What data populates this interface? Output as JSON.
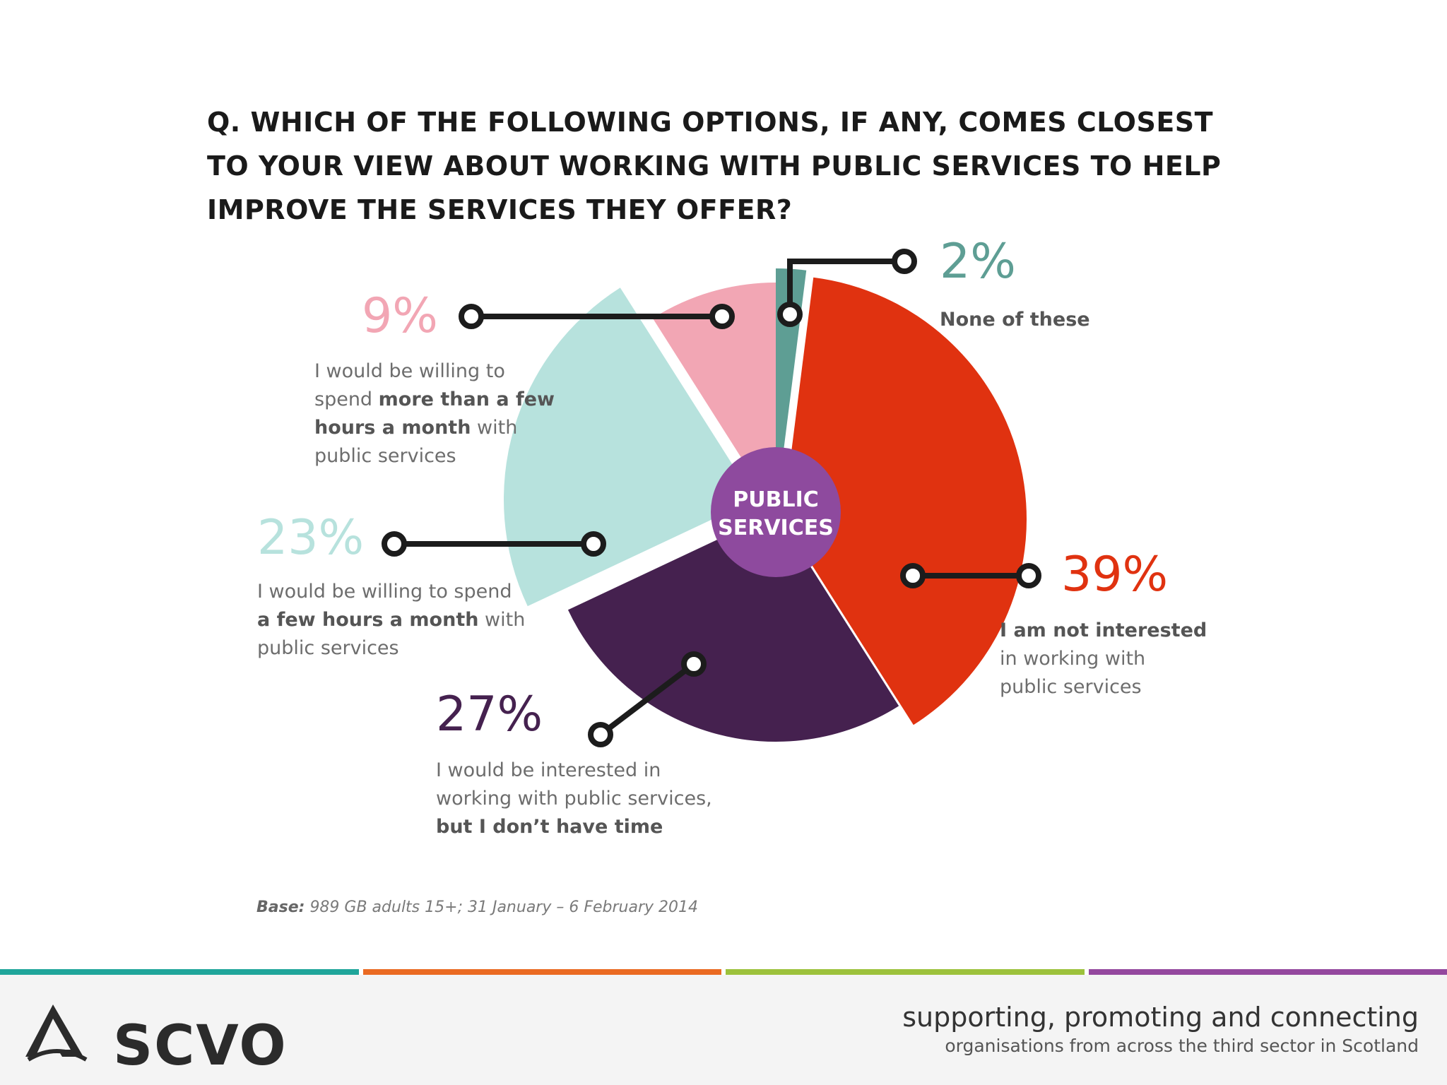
{
  "chart_data": {
    "type": "pie",
    "title": "Q. WHICH OF THE FOLLOWING OPTIONS, IF ANY, COMES CLOSEST TO YOUR VIEW ABOUT WORKING WITH PUBLIC SERVICES TO HELP IMPROVE THE SERVICES THEY OFFER?",
    "title_lines": [
      "Q. WHICH OF THE FOLLOWING OPTIONS, IF ANY, COMES CLOSEST",
      "TO YOUR VIEW ABOUT WORKING WITH PUBLIC SERVICES TO HELP",
      "IMPROVE THE SERVICES THEY OFFER?"
    ],
    "center_label": [
      "PUBLIC",
      "SERVICES"
    ],
    "center_color": "#8e4a9e",
    "slices": [
      {
        "id": "none",
        "value": 2,
        "label": "2%",
        "color": "#5e9e94",
        "desc_lines": [
          [
            {
              "t": "None of these",
              "b": true
            }
          ]
        ]
      },
      {
        "id": "not-interested",
        "value": 39,
        "label": "39%",
        "color": "#e03210",
        "desc_lines": [
          [
            {
              "t": "I am not interested",
              "b": true
            }
          ],
          [
            {
              "t": "in working with",
              "b": false
            }
          ],
          [
            {
              "t": "public services",
              "b": false
            }
          ]
        ]
      },
      {
        "id": "no-time",
        "value": 27,
        "label": "27%",
        "color": "#45214f",
        "desc_lines": [
          [
            {
              "t": "I would be interested in",
              "b": false
            }
          ],
          [
            {
              "t": "working with public services,",
              "b": false
            }
          ],
          [
            {
              "t": "but I don’t have time",
              "b": true
            }
          ]
        ]
      },
      {
        "id": "few-hours",
        "value": 23,
        "label": "23%",
        "color": "#b7e2dd",
        "desc_lines": [
          [
            {
              "t": "I would be willing to spend",
              "b": false
            }
          ],
          [
            {
              "t": "a few hours a month",
              "b": true
            },
            {
              "t": " with",
              "b": false
            }
          ],
          [
            {
              "t": "public services",
              "b": false
            }
          ]
        ]
      },
      {
        "id": "more-hours",
        "value": 9,
        "label": "9%",
        "color": "#f2a6b4",
        "desc_lines": [
          [
            {
              "t": "I would be willing to",
              "b": false
            }
          ],
          [
            {
              "t": "spend ",
              "b": false
            },
            {
              "t": "more than a few",
              "b": true
            }
          ],
          [
            {
              "t": "hours a month",
              "b": true
            },
            {
              "t": " with",
              "b": false
            }
          ],
          [
            {
              "t": "public services",
              "b": false
            }
          ]
        ]
      }
    ]
  },
  "base_note": {
    "label": "Base:",
    "text": "989 GB adults 15+; 31 January – 6 February 2014"
  },
  "footer": {
    "logo_text": "SCVO",
    "tagline_main": "supporting, promoting and connecting",
    "tagline_sub": "organisations from across the third sector in Scotland",
    "stripe_colors": [
      "#1fa59a",
      "#ea6a22",
      "#9cc13b",
      "#94489e"
    ]
  }
}
